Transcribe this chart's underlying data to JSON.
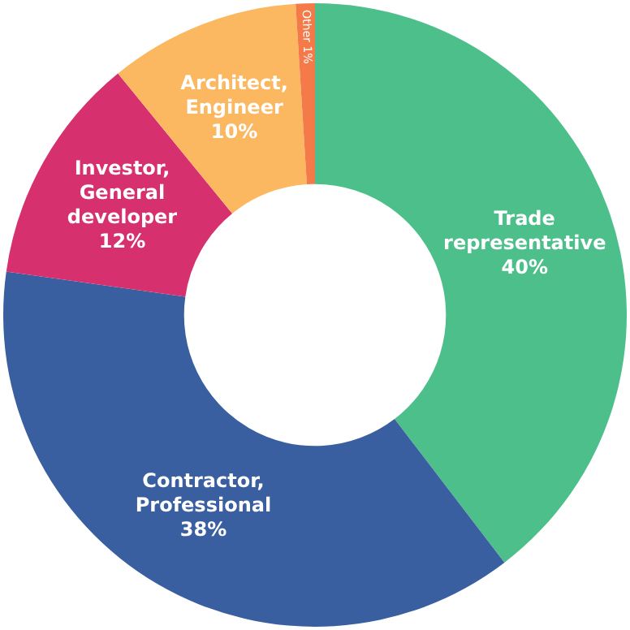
{
  "chart_data": {
    "type": "donut",
    "categories": [
      "Trade representative",
      "Contractor, Professional",
      "Investor, General developer",
      "Architect, Engineer",
      "Other"
    ],
    "values": [
      40,
      38,
      12,
      10,
      1
    ],
    "value_labels": [
      "40%",
      "38%",
      "12%",
      "10%",
      "1%"
    ],
    "colors": [
      "#4dbf8a",
      "#3a5fa0",
      "#d6306f",
      "#fbb861",
      "#f47a4a"
    ],
    "legend": false
  }
}
